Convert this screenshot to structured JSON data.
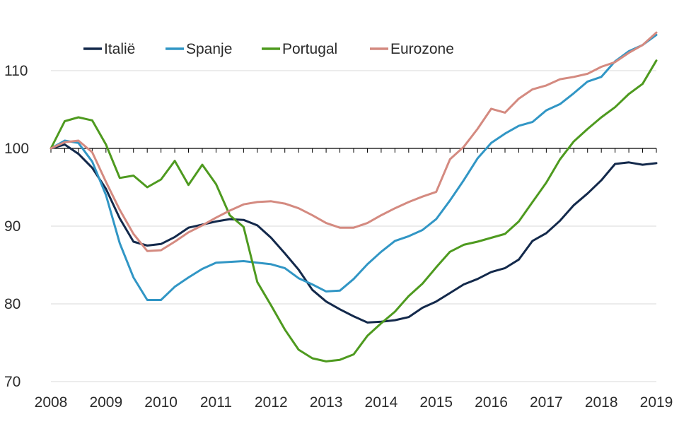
{
  "chart_data": {
    "type": "line",
    "title": "",
    "xlabel": "",
    "ylabel": "",
    "xlim": [
      2008,
      2019
    ],
    "ylim": [
      70,
      115
    ],
    "x_ticks": [
      2008,
      2009,
      2010,
      2011,
      2012,
      2013,
      2014,
      2015,
      2016,
      2017,
      2018,
      2019
    ],
    "y_ticks": [
      70,
      80,
      90,
      100,
      110
    ],
    "gridlines": "horizontal",
    "baseline": 100,
    "legend_position": "top-left",
    "colors": {
      "Italië": "#13294b",
      "Spanje": "#3196c5",
      "Portugal": "#4e9a1f",
      "Eurozone": "#d48a80"
    },
    "x": [
      2008.0,
      2008.25,
      2008.5,
      2008.75,
      2009.0,
      2009.25,
      2009.5,
      2009.75,
      2010.0,
      2010.25,
      2010.5,
      2010.75,
      2011.0,
      2011.25,
      2011.5,
      2011.75,
      2012.0,
      2012.25,
      2012.5,
      2012.75,
      2013.0,
      2013.25,
      2013.5,
      2013.75,
      2014.0,
      2014.25,
      2014.5,
      2014.75,
      2015.0,
      2015.25,
      2015.5,
      2015.75,
      2016.0,
      2016.25,
      2016.5,
      2016.75,
      2017.0,
      2017.25,
      2017.5,
      2017.75,
      2018.0,
      2018.25,
      2018.5,
      2018.75,
      2019.0
    ],
    "series": [
      {
        "name": "Italië",
        "values": [
          100.0,
          100.5,
          99.3,
          97.5,
          94.8,
          91.0,
          88.0,
          87.5,
          87.7,
          88.6,
          89.8,
          90.2,
          90.6,
          90.9,
          90.8,
          90.1,
          88.5,
          86.5,
          84.4,
          81.8,
          80.3,
          79.3,
          78.4,
          77.6,
          77.7,
          77.9,
          78.3,
          79.5,
          80.3,
          81.4,
          82.5,
          83.2,
          84.1,
          84.6,
          85.7,
          88.1,
          89.1,
          90.7,
          92.7,
          94.2,
          95.9,
          98.0,
          98.2,
          97.9,
          98.1
        ]
      },
      {
        "name": "Spanje",
        "values": [
          100.0,
          101.0,
          100.7,
          98.3,
          94.0,
          87.8,
          83.4,
          80.5,
          80.5,
          82.2,
          83.4,
          84.5,
          85.3,
          85.4,
          85.5,
          85.3,
          85.1,
          84.6,
          83.3,
          82.5,
          81.6,
          81.7,
          83.2,
          85.1,
          86.7,
          88.1,
          88.7,
          89.5,
          90.9,
          93.3,
          95.9,
          98.7,
          100.7,
          101.9,
          102.9,
          103.4,
          104.9,
          105.7,
          107.1,
          108.6,
          109.2,
          111.2,
          112.5,
          113.3,
          114.6
        ]
      },
      {
        "name": "Portugal",
        "values": [
          100.0,
          103.5,
          104.0,
          103.6,
          100.5,
          96.2,
          96.5,
          95.0,
          96.0,
          98.4,
          95.3,
          97.9,
          95.4,
          91.4,
          89.9,
          82.8,
          79.8,
          76.7,
          74.1,
          73.0,
          72.6,
          72.8,
          73.5,
          75.9,
          77.5,
          79.0,
          81.0,
          82.6,
          84.7,
          86.7,
          87.6,
          88.0,
          88.5,
          89.0,
          90.6,
          93.1,
          95.6,
          98.6,
          100.9,
          102.5,
          104.0,
          105.3,
          107.0,
          108.3,
          111.3
        ]
      },
      {
        "name": "Eurozone",
        "values": [
          100.0,
          100.8,
          101.0,
          99.5,
          95.7,
          92.1,
          89.0,
          86.8,
          86.9,
          88.0,
          89.2,
          90.1,
          91.1,
          92.0,
          92.8,
          93.1,
          93.2,
          92.9,
          92.3,
          91.4,
          90.4,
          89.8,
          89.8,
          90.4,
          91.4,
          92.3,
          93.1,
          93.8,
          94.4,
          98.6,
          100.2,
          102.5,
          105.1,
          104.6,
          106.4,
          107.6,
          108.1,
          108.9,
          109.2,
          109.6,
          110.5,
          111.1,
          112.3,
          113.3,
          114.9
        ]
      }
    ]
  }
}
